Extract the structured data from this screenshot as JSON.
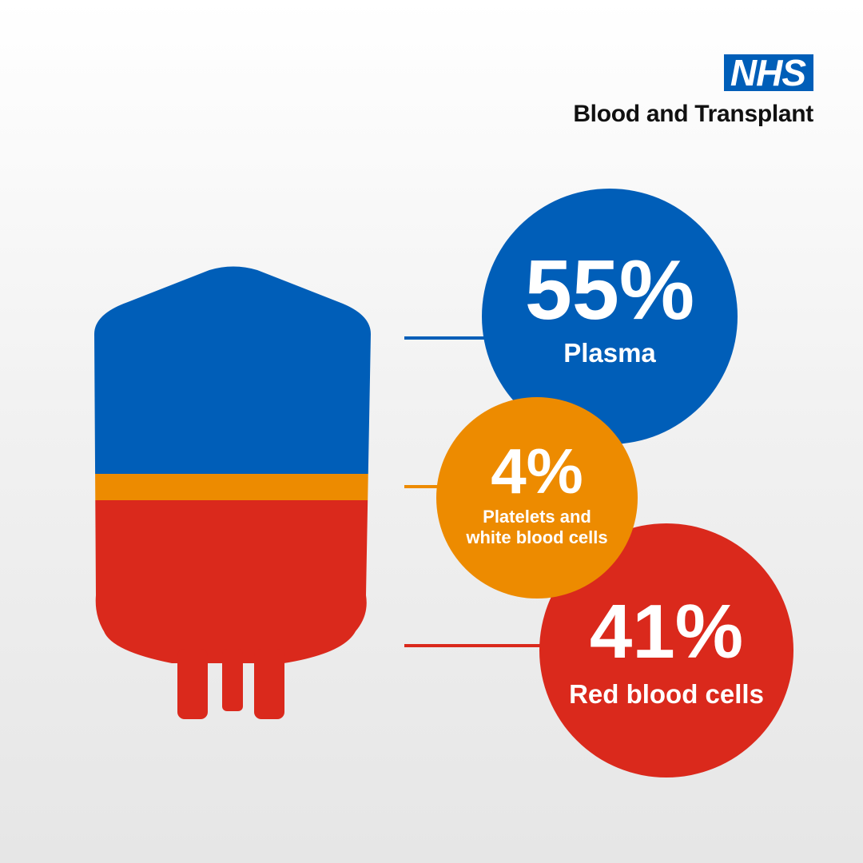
{
  "logo": {
    "nhs": "NHS",
    "org": "Blood and Transplant"
  },
  "components": [
    {
      "id": "plasma",
      "percent_label": "55%",
      "label": "Plasma",
      "value": 55,
      "color": "#005eb8"
    },
    {
      "id": "platelets",
      "percent_label": "4%",
      "label_lines": [
        "Platelets and",
        "white blood cells"
      ],
      "value": 4,
      "color": "#ed8b00"
    },
    {
      "id": "red",
      "percent_label": "41%",
      "label": "Red blood cells",
      "value": 41,
      "color": "#da291c"
    }
  ]
}
